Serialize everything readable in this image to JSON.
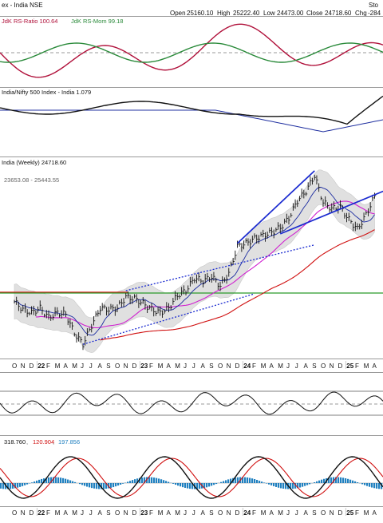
{
  "header": {
    "title_fragment": "ex - India NSE",
    "source_fragment": "Sto",
    "ohlc": {
      "open_label": "Open",
      "open": "25160.10",
      "high_label": "High",
      "high": "25222.40",
      "low_label": "Low",
      "low": "24473.00",
      "close_label": "Close",
      "close": "24718.60",
      "chg_label": "Chg",
      "chg": "-284"
    }
  },
  "panels": {
    "rrg": {
      "label_ratio": "JdK RS-Ratio 100.64",
      "label_mom": "JdK RS-Mom 99.18",
      "ratio_color": "#b0103a",
      "mom_color": "#2a8a3a"
    },
    "relative": {
      "label": "India/Nifty 500 Index - India 1.079"
    },
    "price": {
      "label": "India (Weekly) 24718.60",
      "bb_label": "23653.08 - 25443.55",
      "support_color": "#2a9a2a",
      "resistance_color": "#e01010",
      "trend_color": "#1a2ad0",
      "ma50_color": "#d020d0",
      "ma200_color": "#d01010"
    },
    "rsi": {},
    "macd": {
      "values": [
        "318.760",
        "120.904",
        "197.856"
      ],
      "colors": [
        "#111111",
        "#d01010",
        "#2080c0"
      ]
    }
  },
  "x_axis": {
    "labels": [
      "O",
      "N",
      "D",
      "22",
      "F",
      "M",
      "A",
      "M",
      "J",
      "J",
      "A",
      "S",
      "O",
      "N",
      "D",
      "23",
      "F",
      "M",
      "A",
      "M",
      "J",
      "J",
      "A",
      "S",
      "O",
      "N",
      "D",
      "24",
      "F",
      "M",
      "A",
      "M",
      "J",
      "J",
      "A",
      "S",
      "O",
      "N",
      "D",
      "25",
      "F",
      "M",
      "A"
    ],
    "year_labels": [
      "22",
      "23",
      "24",
      "25"
    ]
  },
  "chart_data": {
    "type": "line",
    "title": "",
    "x": [
      "2021-10",
      "2021-11",
      "2021-12",
      "2022-01",
      "2022-02",
      "2022-03",
      "2022-04",
      "2022-05",
      "2022-06",
      "2022-07",
      "2022-08",
      "2022-09",
      "2022-10",
      "2022-11",
      "2022-12",
      "2023-01",
      "2023-02",
      "2023-03",
      "2023-04",
      "2023-05",
      "2023-06",
      "2023-07",
      "2023-08",
      "2023-09",
      "2023-10",
      "2023-11",
      "2023-12",
      "2024-01",
      "2024-02",
      "2024-03",
      "2024-04",
      "2024-05",
      "2024-06",
      "2024-07",
      "2024-08",
      "2024-09",
      "2024-10",
      "2024-11",
      "2024-12",
      "2025-01",
      "2025-02",
      "2025-03",
      "2025-04"
    ],
    "series": [
      {
        "name": "Close",
        "values": [
          18000,
          17500,
          17300,
          17600,
          17000,
          17300,
          17200,
          16000,
          15300,
          16500,
          17600,
          17500,
          17600,
          18300,
          18200,
          17900,
          17500,
          17300,
          17600,
          18400,
          18700,
          19500,
          19300,
          19600,
          19000,
          19800,
          21500,
          21700,
          22000,
          22200,
          22400,
          22700,
          23300,
          24400,
          25000,
          26000,
          24300,
          23900,
          24000,
          23200,
          22600,
          23500,
          24718.6
        ]
      }
    ],
    "price_panel": {
      "support_level": 18600,
      "ylim": [
        14500,
        27000
      ]
    },
    "rrg_panel": {
      "rs_ratio": 100.64,
      "rs_mom": 99.18
    },
    "relative_panel": {
      "value": 1.079
    },
    "macd_panel": {
      "macd": 318.76,
      "signal": 120.904,
      "histogram": 197.856
    }
  }
}
